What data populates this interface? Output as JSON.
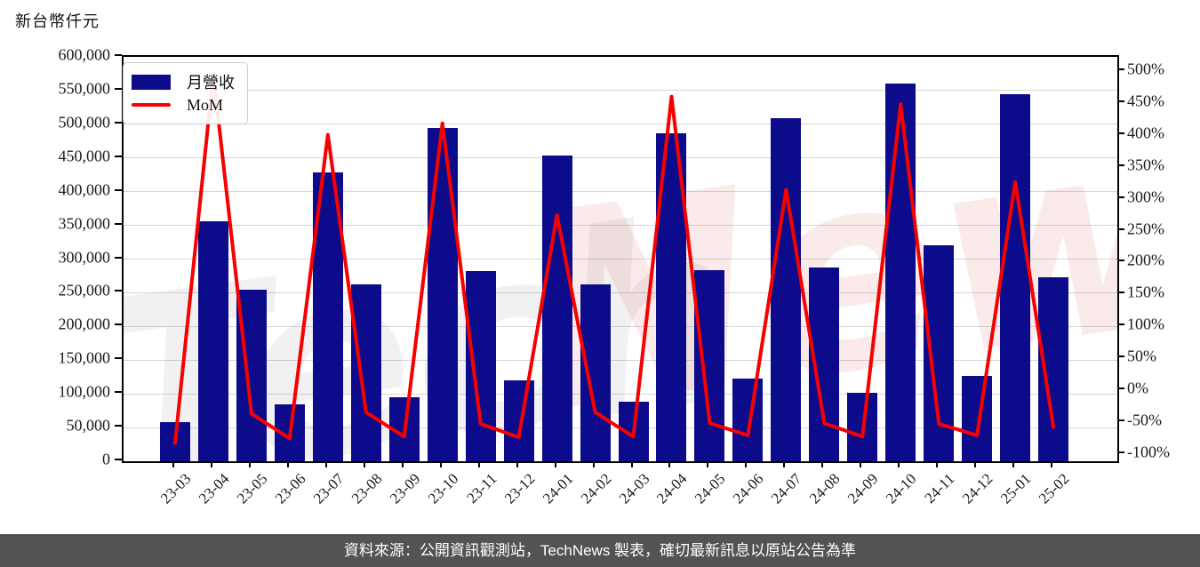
{
  "title": "新台幣仟元",
  "legend": {
    "bar_label": "月營收",
    "line_label": "MoM"
  },
  "watermark": {
    "text_gray": "Tech",
    "text_pink": "News"
  },
  "footer": {
    "text": "資料來源：公開資訊觀測站，TechNews 製表，確切最新訊息以原站公告為準"
  },
  "colors": {
    "bar": "#0b0b8c",
    "line": "#f70000",
    "grid": "#d6d6d6",
    "axis": "#000000",
    "footer_bg": "#535353",
    "footer_text": "#ffffff",
    "watermark_gray": "rgba(120,120,120,0.10)",
    "watermark_pink": "rgba(220,95,95,0.13)"
  },
  "chart_data": {
    "type": "bar",
    "title": "新台幣仟元",
    "categories": [
      "23-03",
      "23-04",
      "23-05",
      "23-06",
      "23-07",
      "23-08",
      "23-09",
      "23-10",
      "23-11",
      "23-12",
      "24-01",
      "24-02",
      "24-03",
      "24-04",
      "24-05",
      "24-06",
      "24-07",
      "24-08",
      "24-09",
      "24-10",
      "24-11",
      "24-12",
      "25-01",
      "25-02"
    ],
    "series": [
      {
        "name": "月營收",
        "type": "bar",
        "axis": "left",
        "unit": "新台幣仟元",
        "values": [
          58500,
          356000,
          254000,
          85000,
          428000,
          262000,
          95000,
          494000,
          282000,
          120000,
          453000,
          262000,
          88000,
          486500,
          284000,
          122000,
          508500,
          287000,
          101500,
          560500,
          320500,
          126500,
          544000,
          272500
        ]
      },
      {
        "name": "MoM",
        "type": "line",
        "axis": "right",
        "unit": "%",
        "values": [
          -81,
          497,
          -35,
          -74,
          402,
          -33,
          -71,
          420,
          -51,
          -72,
          276,
          -33,
          -71,
          462,
          -50,
          -69,
          316,
          -50,
          -71,
          450,
          -51,
          -69,
          328,
          -56
        ]
      }
    ],
    "left_axis": {
      "min": 0,
      "max": 600000,
      "tick_labels": [
        "600,000",
        "550,000",
        "500,000",
        "450,000",
        "400,000",
        "350,000",
        "300,000",
        "250,000",
        "200,000",
        "150,000",
        "100,000",
        "50,000",
        "0"
      ]
    },
    "right_axis": {
      "min": -100,
      "max": 500,
      "tick_labels": [
        "500%",
        "450%",
        "400%",
        "350%",
        "300%",
        "250%",
        "200%",
        "150%",
        "100%",
        "50%",
        "0%",
        "-50%",
        "-100%"
      ]
    },
    "grid": "horizontal",
    "legend_position": "top-left"
  }
}
